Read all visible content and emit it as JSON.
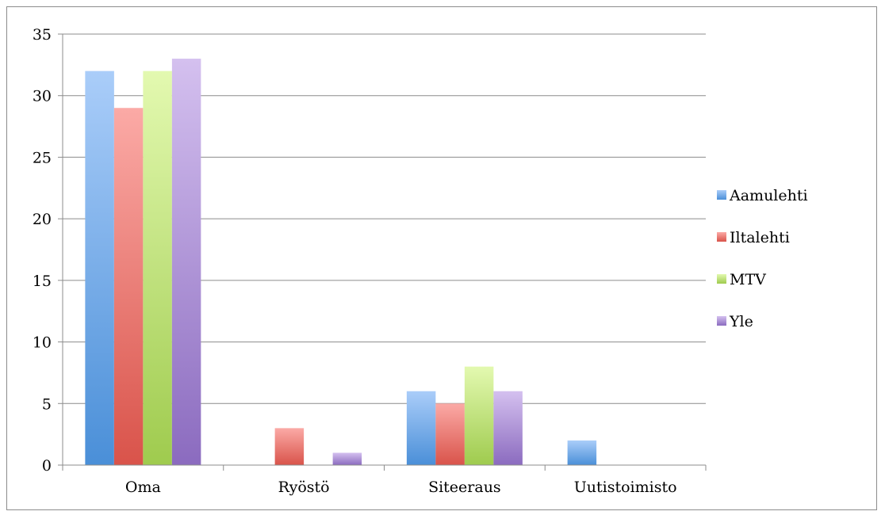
{
  "chart_data": {
    "type": "bar",
    "categories": [
      "Oma",
      "Ryöstö",
      "Siteeraus",
      "Uutistoimisto"
    ],
    "series": [
      {
        "name": "Aamulehti",
        "values": [
          32,
          0,
          6,
          2
        ],
        "color_top": "#aacdf9",
        "color_bottom": "#4a8fd8"
      },
      {
        "name": "Iltalehti",
        "values": [
          29,
          3,
          5,
          0
        ],
        "color_top": "#fbaaa6",
        "color_bottom": "#d9534a"
      },
      {
        "name": "MTV",
        "values": [
          32,
          0,
          8,
          0
        ],
        "color_top": "#e3f9b0",
        "color_bottom": "#9fcb4e"
      },
      {
        "name": "Yle",
        "values": [
          33,
          1,
          6,
          0
        ],
        "color_top": "#d4c0ef",
        "color_bottom": "#8b6bbf"
      }
    ],
    "ylim": [
      0,
      35
    ],
    "yticks": [
      0,
      5,
      10,
      15,
      20,
      25,
      30,
      35
    ],
    "grid": true,
    "legend_position": "right"
  }
}
